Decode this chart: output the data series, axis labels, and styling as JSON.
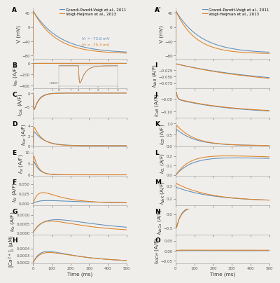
{
  "blue_color": "#5b8db8",
  "orange_color": "#e08020",
  "bg_color": "#f0eeeb",
  "legend_labels": [
    "Grandi-Pandit-Voigt et al., 2011",
    "Voigt-Heijman et al., 2013"
  ],
  "vr_blue": "-73.6 mV",
  "vr_orange": "-75.3 mV",
  "t_max": 500
}
